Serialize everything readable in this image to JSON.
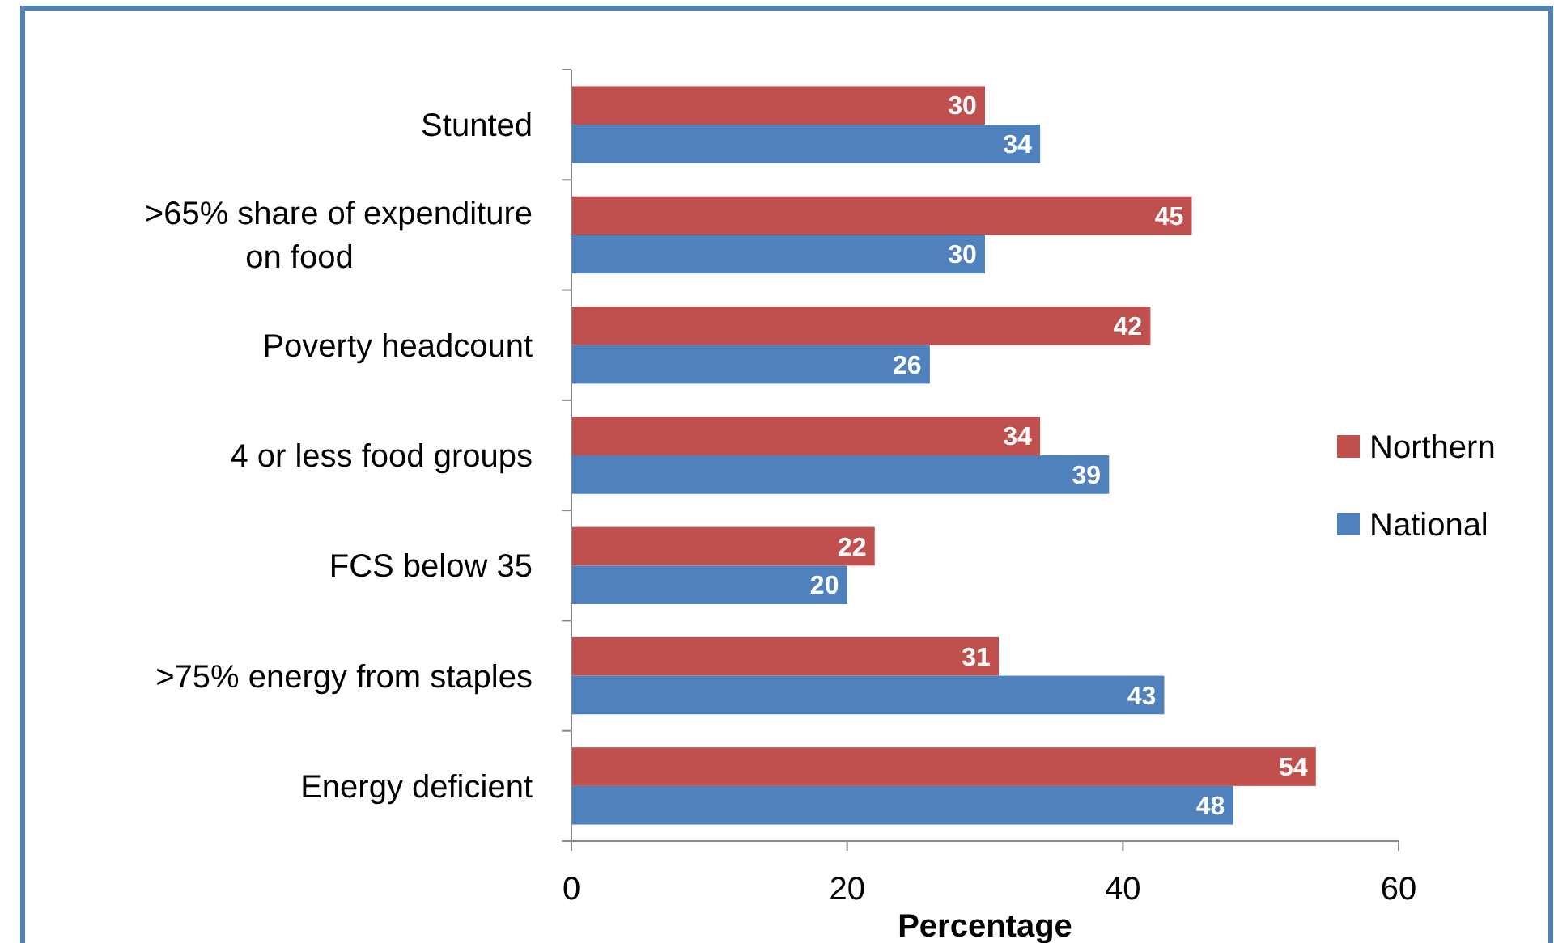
{
  "chart_data": {
    "type": "bar",
    "orientation": "horizontal",
    "xlabel": "Percentage",
    "categories": [
      "Stunted",
      ">65% share of expenditure on food",
      "Poverty headcount",
      "4 or less food groups",
      "FCS below 35",
      ">75% energy from staples",
      "Energy deficient"
    ],
    "series": [
      {
        "name": "Northern",
        "color": "#c0504d",
        "values": [
          30,
          45,
          42,
          34,
          22,
          31,
          54
        ]
      },
      {
        "name": "National",
        "color": "#4f81bd",
        "values": [
          34,
          30,
          26,
          39,
          20,
          43,
          48
        ]
      }
    ],
    "xlim": [
      0,
      60
    ],
    "xticks": [
      0,
      20,
      40,
      60
    ],
    "data_labels": true,
    "legend": "right",
    "grid": false
  }
}
